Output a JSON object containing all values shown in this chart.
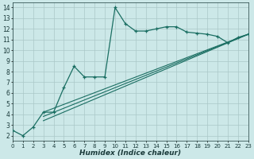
{
  "xlabel": "Humidex (Indice chaleur)",
  "bg_color": "#cce8e8",
  "grid_color": "#aac8c8",
  "line_color": "#1a6e62",
  "x_main": [
    0,
    1,
    2,
    3,
    4,
    5,
    6,
    7,
    8,
    9,
    10,
    11,
    12,
    13,
    14,
    15,
    16,
    17,
    18,
    19,
    20,
    21,
    22,
    23
  ],
  "y_main": [
    2.5,
    2.0,
    2.8,
    4.2,
    4.2,
    6.5,
    8.5,
    7.5,
    7.5,
    7.5,
    14.0,
    12.5,
    11.8,
    11.8,
    12.0,
    12.2,
    12.2,
    11.7,
    11.6,
    11.5,
    11.3,
    10.7,
    11.2,
    11.5
  ],
  "line2_x": [
    3,
    23
  ],
  "line2_y": [
    4.2,
    11.5
  ],
  "line3_x": [
    3,
    23
  ],
  "line3_y": [
    3.8,
    11.5
  ],
  "line4_x": [
    3,
    23
  ],
  "line4_y": [
    3.4,
    11.5
  ],
  "xlim": [
    0,
    23
  ],
  "ylim": [
    1.5,
    14.5
  ],
  "yticks": [
    2,
    3,
    4,
    5,
    6,
    7,
    8,
    9,
    10,
    11,
    12,
    13,
    14
  ],
  "xticks": [
    0,
    1,
    2,
    3,
    4,
    5,
    6,
    7,
    8,
    9,
    10,
    11,
    12,
    13,
    14,
    15,
    16,
    17,
    18,
    19,
    20,
    21,
    22,
    23
  ]
}
